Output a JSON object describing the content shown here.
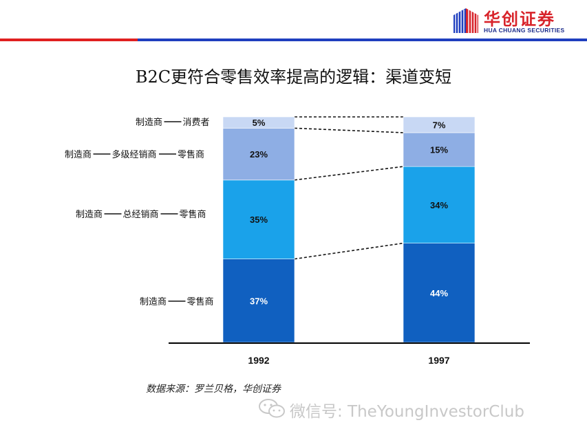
{
  "header": {
    "logo_cn": "华创证券",
    "logo_en": "HUA CHUANG SECURITIES",
    "colors": {
      "brand_red": "#d8232a",
      "brand_blue": "#1f3fbf"
    }
  },
  "title": "B2C更符合零售效率提高的逻辑：渠道变短",
  "channels": [
    {
      "parts": [
        "制造商",
        "消费者"
      ]
    },
    {
      "parts": [
        "制造商",
        "多级经销商",
        "零售商"
      ]
    },
    {
      "parts": [
        "制造商",
        "总经销商",
        "零售商"
      ]
    },
    {
      "parts": [
        "制造商",
        "零售商"
      ]
    }
  ],
  "chart_data": {
    "type": "bar",
    "stacked": true,
    "categories": [
      "1992",
      "1997"
    ],
    "series": [
      {
        "name": "制造商—零售商",
        "values": [
          37,
          44
        ],
        "labels": [
          "37%",
          "44%"
        ],
        "color": "#1060c0",
        "label_color": "#ffffff"
      },
      {
        "name": "制造商—总经销商—零售商",
        "values": [
          35,
          34
        ],
        "labels": [
          "35%",
          "34%"
        ],
        "color": "#1aa2ea",
        "label_color": "#111111"
      },
      {
        "name": "制造商—多级经销商—零售商",
        "values": [
          23,
          15
        ],
        "labels": [
          "23%",
          "15%"
        ],
        "color": "#8eaee4",
        "label_color": "#111111"
      },
      {
        "name": "制造商—消费者",
        "values": [
          5,
          7
        ],
        "labels": [
          "5%",
          "7%"
        ],
        "color": "#c8d8f4",
        "label_color": "#111111"
      }
    ],
    "ylim": [
      0,
      100
    ],
    "grid": false,
    "connectors": "dashed"
  },
  "source": "数据来源：罗兰贝格，华创证券",
  "watermark": {
    "text": "微信号: TheYoungInvestorClub",
    "icon": "wechat-icon"
  }
}
